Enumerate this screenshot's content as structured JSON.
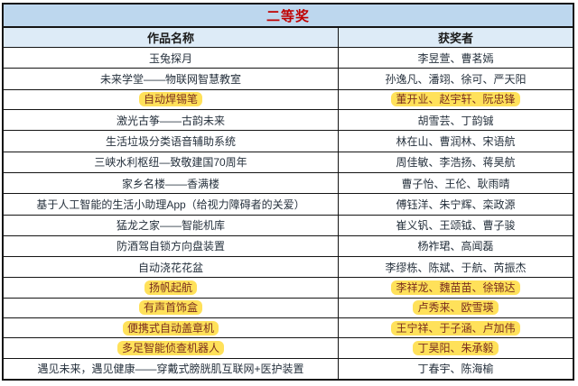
{
  "colors": {
    "title_bg": "#BDD7EE",
    "header_bg": "#DDEBF7",
    "title_text": "#C00000",
    "body_text": "#26313D",
    "highlight_bg": "#FFE15A",
    "highlight_text": "#7A2E1F",
    "border": "#141414"
  },
  "table": {
    "title": "二等奖",
    "columns": [
      "作品名称",
      "获奖者"
    ],
    "rows": [
      {
        "work": "玉兔探月",
        "winners": "李昱萱、曹茗嫣",
        "highlighted": false
      },
      {
        "work": "未来学堂——物联网智慧教室",
        "winners": "孙逸凡、潘翊、徐可、严天阳",
        "highlighted": false
      },
      {
        "work": "自动焊锡笔",
        "winners": "董开业、赵宇轩、阮忠锋",
        "highlighted": true
      },
      {
        "work": "激光古筝——古韵未来",
        "winners": "胡雪芸、丁韵铖",
        "highlighted": false
      },
      {
        "work": "生活垃圾分类语音辅助系统",
        "winners": "林在山、曹润林、宋语航",
        "highlighted": false
      },
      {
        "work": "三峡水利枢纽—致敬建国70周年",
        "winners": "周佳敏、李浩扬、蒋昊航",
        "highlighted": false
      },
      {
        "work": "家乡名楼——香满楼",
        "winners": "曹子怡、王伦、耿雨晴",
        "highlighted": false
      },
      {
        "work": "基于人工智能的生活小助理App（给视力障碍者的关爱）",
        "winners": "傅钰洋、朱宁辉、栾政源",
        "highlighted": false
      },
      {
        "work": "猛龙之家——智能机库",
        "winners": "崔义钒、王颂钺、曹子骏",
        "highlighted": false
      },
      {
        "work": "防酒驾自锁方向盘装置",
        "winners": "杨祚珺、高闻磊",
        "highlighted": false
      },
      {
        "work": "自动浇花花盆",
        "winners": "李缪栋、陈斌、于航、芮振杰",
        "highlighted": false
      },
      {
        "work": "扬帆起航",
        "winners": "李祥龙、魏苗苗、徐锦达",
        "highlighted": true
      },
      {
        "work": "有声首饰盒",
        "winners": "卢秀来、欧雪瑛",
        "highlighted": true
      },
      {
        "work": "便携式自动盖章机",
        "winners": "王宁祥、于子涵、卢加伟",
        "highlighted": true
      },
      {
        "work": "多足智能侦查机器人",
        "winners": "丁昊阳、朱承毅",
        "highlighted": true
      },
      {
        "work": "遇见未来，遇见健康——穿戴式膀胱肌互联网+医护装置",
        "winners": "丁春宇、陈海榆",
        "highlighted": false
      }
    ]
  }
}
